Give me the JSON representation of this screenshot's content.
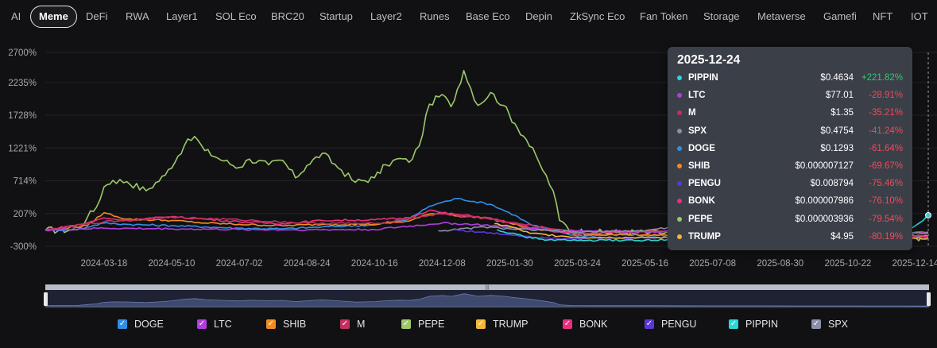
{
  "tabs": [
    "AI",
    "Meme",
    "DeFi",
    "RWA",
    "Layer1",
    "SOL Eco",
    "BRC20",
    "Startup",
    "Layer2",
    "Runes",
    "Base Eco",
    "Depin",
    "ZkSync Eco",
    "Fan Token",
    "Storage",
    "Metaverse",
    "Gamefi",
    "NFT",
    "IOT"
  ],
  "active_tab": "Meme",
  "tooltip": {
    "date": "2025-12-24",
    "rows": [
      {
        "name": "PIPPIN",
        "price": "$0.4634",
        "change": "+221.82%",
        "color": "#2bd6d6",
        "up": true
      },
      {
        "name": "LTC",
        "price": "$77.01",
        "change": "-28.91%",
        "color": "#b23ce0",
        "up": false
      },
      {
        "name": "M",
        "price": "$1.35",
        "change": "-35.21%",
        "color": "#c2305f",
        "up": false
      },
      {
        "name": "SPX",
        "price": "$0.4754",
        "change": "-41.24%",
        "color": "#8b8fa8",
        "up": false
      },
      {
        "name": "DOGE",
        "price": "$0.1293",
        "change": "-61.64%",
        "color": "#2f8fe8",
        "up": false
      },
      {
        "name": "SHIB",
        "price": "$0.000007127",
        "change": "-69.67%",
        "color": "#f08a24",
        "up": false
      },
      {
        "name": "PENGU",
        "price": "$0.008794",
        "change": "-75.46%",
        "color": "#5b36d8",
        "up": false
      },
      {
        "name": "BONK",
        "price": "$0.000007986",
        "change": "-76.10%",
        "color": "#e8307e",
        "up": false
      },
      {
        "name": "PEPE",
        "price": "$0.000003936",
        "change": "-79.54%",
        "color": "#9cc86a",
        "up": false
      },
      {
        "name": "TRUMP",
        "price": "$4.95",
        "change": "-80.19%",
        "color": "#f2b83a",
        "up": false
      }
    ]
  },
  "legend": [
    {
      "name": "DOGE",
      "color": "#2f8fe8"
    },
    {
      "name": "LTC",
      "color": "#b23ce0"
    },
    {
      "name": "SHIB",
      "color": "#f08a24"
    },
    {
      "name": "M",
      "color": "#c2305f"
    },
    {
      "name": "PEPE",
      "color": "#9cc86a"
    },
    {
      "name": "TRUMP",
      "color": "#f2b83a"
    },
    {
      "name": "BONK",
      "color": "#e8307e"
    },
    {
      "name": "PENGU",
      "color": "#5b36d8"
    },
    {
      "name": "PIPPIN",
      "color": "#2bd6d6"
    },
    {
      "name": "SPX",
      "color": "#8b8fa8"
    }
  ],
  "checkmark": "✓",
  "slider_grip": "|||",
  "chart_data": {
    "type": "line",
    "title": "",
    "xlabel": "",
    "ylabel": "",
    "ylim": [
      -300,
      2700
    ],
    "y_ticks": [
      "2700%",
      "2235%",
      "1728%",
      "1221%",
      "714%",
      "207%",
      "-300%"
    ],
    "y_tick_values": [
      2700,
      2235,
      1728,
      1221,
      714,
      207,
      -300
    ],
    "x_ticks": [
      "2024-03-18",
      "2024-05-10",
      "2024-07-02",
      "2024-08-24",
      "2024-10-16",
      "2024-12-08",
      "2025-01-30",
      "2025-03-24",
      "2025-05-16",
      "2025-07-08",
      "2025-08-30",
      "2025-10-22",
      "2025-12-14"
    ],
    "x_start": "2024-02-01",
    "x_end": "2025-12-24",
    "series": [
      {
        "name": "PEPE",
        "color": "#9cc86a",
        "dates": [
          "2024-02-01",
          "2024-02-26",
          "2024-03-05",
          "2024-03-12",
          "2024-03-18",
          "2024-03-25",
          "2024-04-05",
          "2024-04-20",
          "2024-05-05",
          "2024-05-20",
          "2024-05-28",
          "2024-06-05",
          "2024-06-20",
          "2024-07-02",
          "2024-07-10",
          "2024-07-25",
          "2024-08-05",
          "2024-08-15",
          "2024-08-24",
          "2024-09-05",
          "2024-09-20",
          "2024-10-01",
          "2024-10-16",
          "2024-10-25",
          "2024-11-05",
          "2024-11-12",
          "2024-11-20",
          "2024-11-28",
          "2024-12-08",
          "2024-12-15",
          "2024-12-25",
          "2025-01-05",
          "2025-01-15",
          "2025-01-25",
          "2025-02-03",
          "2025-02-12",
          "2025-02-22",
          "2025-03-05",
          "2025-03-10",
          "2025-03-20",
          "2025-04-08",
          "2025-05-01",
          "2025-05-20",
          "2025-06-10",
          "2025-07-08",
          "2025-07-25",
          "2025-08-15",
          "2025-09-05",
          "2025-10-01",
          "2025-10-22",
          "2025-11-15",
          "2025-12-01",
          "2025-12-14",
          "2025-12-24"
        ],
        "values": [
          -50,
          -45,
          150,
          300,
          620,
          720,
          700,
          560,
          800,
          1260,
          1400,
          1180,
          1020,
          920,
          1050,
          960,
          1030,
          760,
          950,
          1140,
          880,
          690,
          760,
          960,
          1060,
          1000,
          1250,
          1900,
          2050,
          1860,
          2420,
          1880,
          2080,
          1880,
          1600,
          1350,
          1000,
          560,
          100,
          -60,
          -90,
          -80,
          -90,
          -100,
          -110,
          -110,
          -120,
          -130,
          -130,
          -140,
          -150,
          -155,
          -165,
          -170
        ]
      },
      {
        "name": "DOGE",
        "color": "#2f8fe8",
        "dates": [
          "2024-02-01",
          "2024-02-26",
          "2024-03-18",
          "2024-04-05",
          "2024-05-10",
          "2024-06-05",
          "2024-07-02",
          "2024-08-05",
          "2024-09-05",
          "2024-10-16",
          "2024-11-12",
          "2024-11-28",
          "2024-12-08",
          "2024-12-20",
          "2025-01-15",
          "2025-02-03",
          "2025-02-15",
          "2025-03-01",
          "2025-03-24",
          "2025-05-01",
          "2025-06-20",
          "2025-08-10",
          "2025-09-15",
          "2025-10-22",
          "2025-11-20",
          "2025-12-14",
          "2025-12-24"
        ],
        "values": [
          -50,
          -40,
          60,
          40,
          20,
          0,
          -20,
          -30,
          0,
          30,
          120,
          320,
          380,
          440,
          350,
          180,
          40,
          -40,
          -140,
          -120,
          -150,
          -140,
          -130,
          -135,
          -145,
          -150,
          -155
        ]
      },
      {
        "name": "SHIB",
        "color": "#f08a24",
        "dates": [
          "2024-02-01",
          "2024-03-05",
          "2024-03-18",
          "2024-04-05",
          "2024-05-10",
          "2024-06-05",
          "2024-07-02",
          "2024-08-05",
          "2024-09-05",
          "2024-10-16",
          "2024-11-12",
          "2024-11-28",
          "2024-12-08",
          "2024-12-20",
          "2025-01-10",
          "2025-01-30",
          "2025-02-15",
          "2025-03-24",
          "2025-05-16",
          "2025-07-08",
          "2025-08-30",
          "2025-10-22",
          "2025-12-14",
          "2025-12-24"
        ],
        "values": [
          -50,
          20,
          220,
          120,
          100,
          60,
          40,
          20,
          40,
          40,
          90,
          200,
          220,
          170,
          140,
          60,
          -20,
          -110,
          -120,
          -125,
          -130,
          -135,
          -140,
          -140
        ]
      },
      {
        "name": "BONK",
        "color": "#e8307e",
        "dates": [
          "2024-02-01",
          "2024-03-05",
          "2024-03-18",
          "2024-04-05",
          "2024-05-10",
          "2024-06-05",
          "2024-07-02",
          "2024-08-05",
          "2024-09-05",
          "2024-10-16",
          "2024-11-12",
          "2024-11-28",
          "2024-12-08",
          "2024-12-20",
          "2025-01-10",
          "2025-01-30",
          "2025-02-15",
          "2025-03-24",
          "2025-05-16",
          "2025-07-08",
          "2025-08-30",
          "2025-10-22",
          "2025-12-14",
          "2025-12-24"
        ],
        "values": [
          -50,
          60,
          140,
          100,
          160,
          120,
          80,
          50,
          100,
          110,
          140,
          260,
          220,
          190,
          150,
          70,
          -20,
          -110,
          -60,
          -70,
          -80,
          -110,
          -140,
          -145
        ]
      },
      {
        "name": "M",
        "color": "#c2305f",
        "dates": [
          "2024-02-01",
          "2024-03-18",
          "2024-05-10",
          "2024-07-02",
          "2024-08-24",
          "2024-10-16",
          "2024-11-28",
          "2024-12-08",
          "2025-01-10",
          "2025-01-30",
          "2025-03-01",
          "2025-03-24",
          "2025-05-16",
          "2025-07-08",
          "2025-08-30",
          "2025-10-22",
          "2025-12-14",
          "2025-12-24"
        ],
        "values": [
          -50,
          80,
          150,
          110,
          60,
          50,
          180,
          200,
          140,
          70,
          -20,
          -70,
          -80,
          -60,
          -80,
          -90,
          -95,
          -100
        ]
      },
      {
        "name": "LTC",
        "color": "#b23ce0",
        "dates": [
          "2024-02-01",
          "2024-03-18",
          "2024-05-10",
          "2024-07-02",
          "2024-08-24",
          "2024-10-16",
          "2024-11-28",
          "2024-12-08",
          "2025-01-10",
          "2025-01-30",
          "2025-03-24",
          "2025-05-16",
          "2025-07-08",
          "2025-08-30",
          "2025-10-22",
          "2025-12-14",
          "2025-12-24"
        ],
        "values": [
          -50,
          -20,
          -30,
          -40,
          -45,
          -40,
          40,
          60,
          30,
          -10,
          -60,
          -70,
          -60,
          -65,
          -70,
          -80,
          -80
        ]
      },
      {
        "name": "PENGU",
        "color": "#5b36d8",
        "dates": [
          "2024-12-17",
          "2025-01-05",
          "2025-01-30",
          "2025-03-01",
          "2025-03-24",
          "2025-05-16",
          "2025-07-08",
          "2025-08-30",
          "2025-10-22",
          "2025-12-14",
          "2025-12-24"
        ],
        "values": [
          -40,
          -80,
          -120,
          -170,
          -180,
          -170,
          -140,
          -150,
          -160,
          -170,
          -175
        ]
      },
      {
        "name": "TRUMP",
        "color": "#f2b83a",
        "dates": [
          "2025-01-18",
          "2025-01-30",
          "2025-02-15",
          "2025-03-24",
          "2025-05-16",
          "2025-07-08",
          "2025-08-30",
          "2025-10-22",
          "2025-12-14",
          "2025-12-24"
        ],
        "values": [
          50,
          10,
          -100,
          -160,
          -165,
          -170,
          -170,
          -175,
          -178,
          -180
        ]
      },
      {
        "name": "PIPPIN",
        "color": "#2bd6d6",
        "dates": [
          "2025-01-20",
          "2025-02-10",
          "2025-03-01",
          "2025-03-24",
          "2025-05-16",
          "2025-07-08",
          "2025-08-30",
          "2025-10-22",
          "2025-11-20",
          "2025-12-05",
          "2025-12-14",
          "2025-12-20",
          "2025-12-24"
        ],
        "values": [
          -40,
          -150,
          -200,
          -210,
          -205,
          -200,
          -200,
          -195,
          -150,
          -60,
          20,
          100,
          180
        ]
      },
      {
        "name": "SPX",
        "color": "#8b8fa8",
        "dates": [
          "2024-12-05",
          "2024-12-20",
          "2025-01-10",
          "2025-01-30",
          "2025-03-24",
          "2025-05-16",
          "2025-06-10",
          "2025-07-08",
          "2025-08-01",
          "2025-08-30",
          "2025-09-25",
          "2025-10-22",
          "2025-11-15",
          "2025-12-14",
          "2025-12-24"
        ],
        "values": [
          -60,
          -40,
          0,
          -30,
          -80,
          -60,
          10,
          -20,
          -40,
          -60,
          -80,
          -60,
          -70,
          -90,
          -90
        ]
      }
    ]
  }
}
